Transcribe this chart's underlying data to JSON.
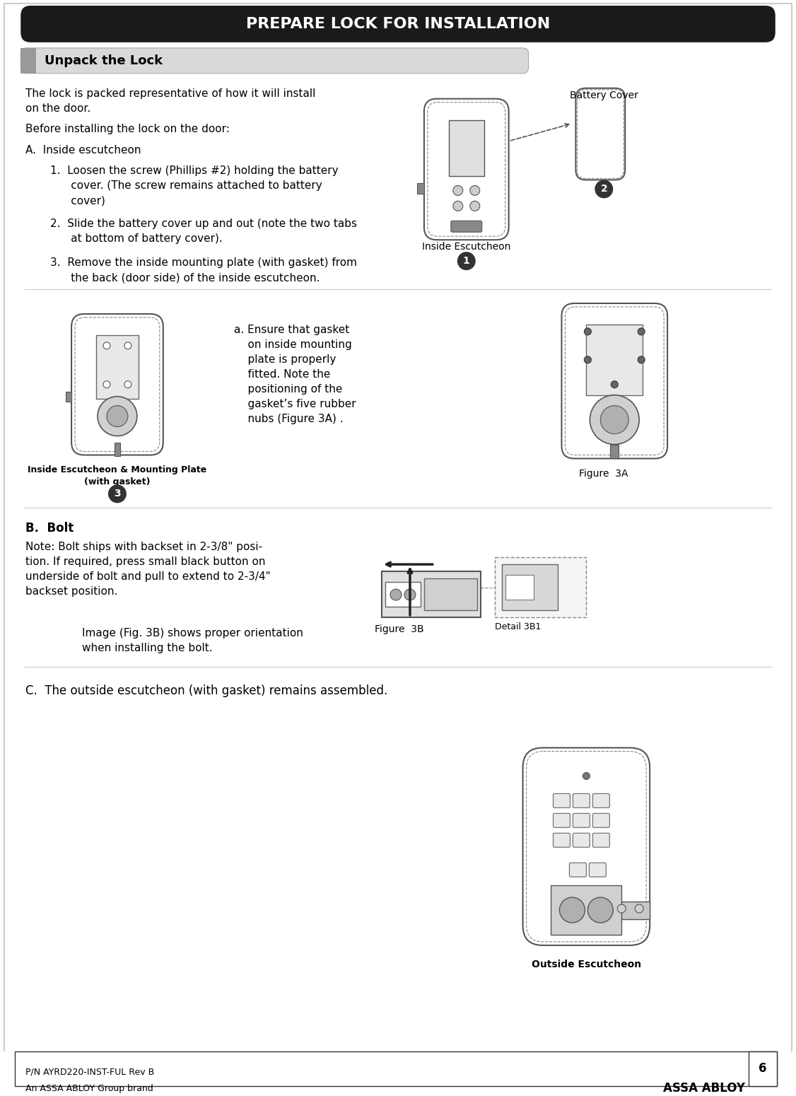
{
  "title": "PREPARE LOCK FOR INSTALLATION",
  "title_bg": "#1a1a1a",
  "title_color": "#ffffff",
  "title_fontsize": 16,
  "section_title": "Unpack the Lock",
  "section_bg": "#d9d9d9",
  "section_accent": "#888888",
  "body_text_1": "The lock is packed representative of how it will install\non the door.",
  "body_text_2": "Before installing the lock on the door:",
  "body_text_A": "A.  Inside escutcheon",
  "item_1": "1.  Loosen the screw (Phillips #2) holding the battery\n      cover. (The screw remains attached to battery\n      cover)",
  "item_2": "2.  Slide the battery cover up and out (note the two tabs\n      at bottom of battery cover).",
  "item_3": "3.  Remove the inside mounting plate (with gasket) from\n      the back (door side) of the inside escutcheon.",
  "label_battery_cover": "Battery Cover",
  "label_inside_escutcheon": "Inside Escutcheon",
  "label_circle_1": "1",
  "label_circle_2": "2",
  "label_circle_3": "3",
  "section_B_title": "B.  Bolt",
  "section_B_note": "Note: Bolt ships with backset in 2-3/8\" posi-\ntion. If required, press small black button on\nunderside of bolt and pull to extend to 2-3/4\"\nbackset position.",
  "section_B_image_caption": "Image (Fig. 3B) shows proper orientation\nwhen installing the bolt.",
  "label_figure_3A": "Figure  3A",
  "label_figure_3B": "Figure  3B",
  "label_detail_3B1": "Detail 3B1",
  "label_inside_escutcheon_mounting": "Inside Escutcheon & Mounting Plate\n(with gasket)",
  "section_C_text": "C.  The outside escutcheon (with gasket) remains assembled.",
  "label_outside_escutcheon": "Outside Escutcheon",
  "text_a_gasket": "a. Ensure that gasket\n    on inside mounting\n    plate is properly\n    fitted. Note the\n    positioning of the\n    gasket’s five rubber\n    nubs (Figure 3A) .",
  "footer_left": "An ASSA ABLOY Group brand",
  "footer_right": "ASSA ABLOY",
  "footer_pn": "P/N AYRD220-INST-FUL Rev B",
  "page_number": "6",
  "bg_color": "#ffffff",
  "text_color": "#000000",
  "border_color": "#333333"
}
